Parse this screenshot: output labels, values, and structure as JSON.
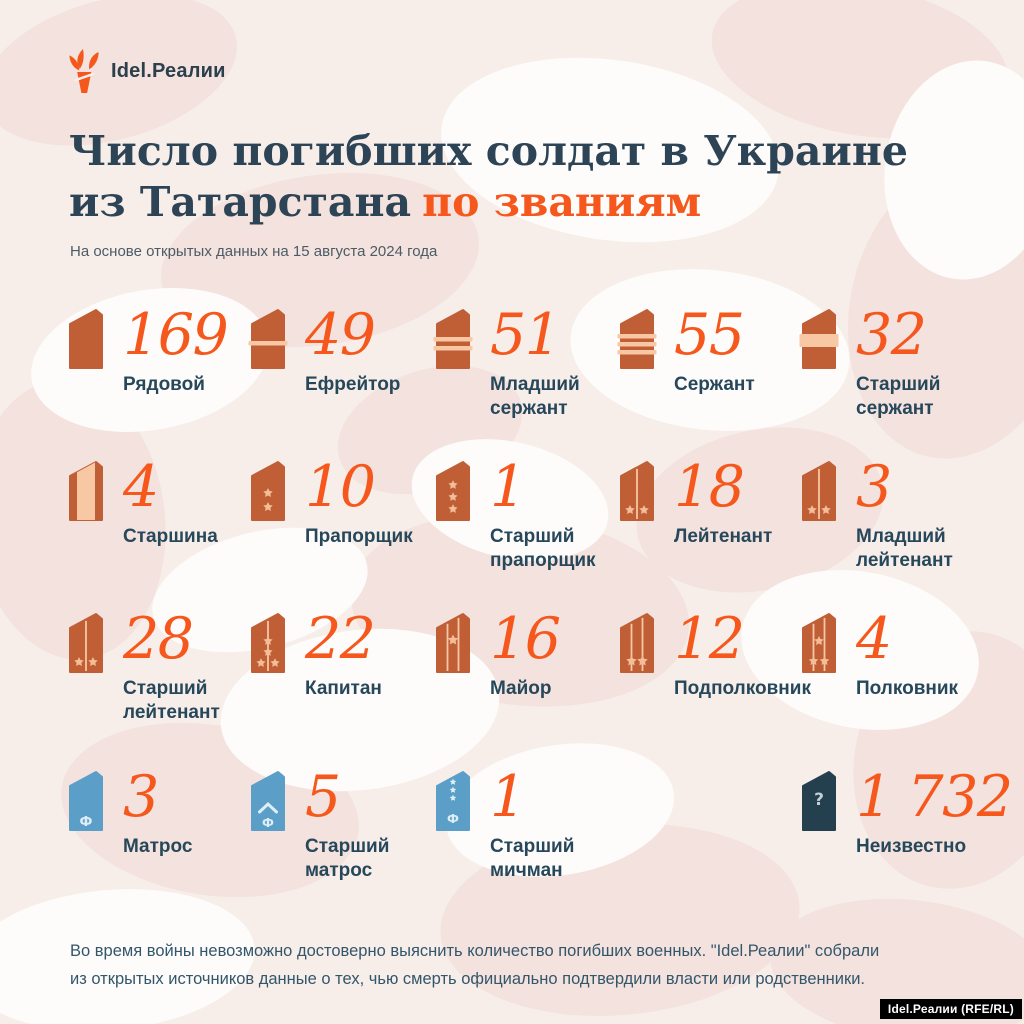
{
  "brand": {
    "name": "Idel.Реалии"
  },
  "title": {
    "line1": "Число погибших солдат в Украине",
    "line2_prefix": "из Татарстана",
    "line2_accent": "по званиям"
  },
  "subtitle": "На основе открытых данных на 15 августа 2024 года",
  "ranks": [
    {
      "label": "Рядовой",
      "value": "169",
      "variant": "plain",
      "row": 0,
      "col": 0
    },
    {
      "label": "Ефрейтор",
      "value": "49",
      "variant": "stripes1",
      "row": 0,
      "col": 1
    },
    {
      "label": "Младший сержант",
      "value": "51",
      "variant": "stripes2",
      "row": 0,
      "col": 2
    },
    {
      "label": "Сержант",
      "value": "55",
      "variant": "stripes3",
      "row": 0,
      "col": 3
    },
    {
      "label": "Старший сержант",
      "value": "32",
      "variant": "stripeWide",
      "row": 0,
      "col": 4
    },
    {
      "label": "Старшина",
      "value": "4",
      "variant": "panel",
      "row": 1,
      "col": 0
    },
    {
      "label": "Прапорщик",
      "value": "10",
      "variant": "stars2col",
      "row": 1,
      "col": 1
    },
    {
      "label": "Старший прапорщик",
      "value": "1",
      "variant": "stars3col",
      "row": 1,
      "col": 2
    },
    {
      "label": "Лейтенант",
      "value": "18",
      "variant": "line1stars2",
      "row": 1,
      "col": 3
    },
    {
      "label": "Младший лейтенант",
      "value": "3",
      "variant": "line1stars2",
      "row": 1,
      "col": 4
    },
    {
      "label": "Старший лейтенант",
      "value": "28",
      "variant": "line1stars2",
      "row": 2,
      "col": 0
    },
    {
      "label": "Капитан",
      "value": "22",
      "variant": "line1stars4",
      "row": 2,
      "col": 1
    },
    {
      "label": "Майор",
      "value": "16",
      "variant": "line2star1",
      "row": 2,
      "col": 2
    },
    {
      "label": "Подполковник",
      "value": "12",
      "variant": "line2stars2",
      "row": 2,
      "col": 3
    },
    {
      "label": "Полковник",
      "value": "4",
      "variant": "line2stars3",
      "row": 2,
      "col": 4
    },
    {
      "label": "Матрос",
      "value": "3",
      "variant": "navyF",
      "row": 3,
      "col": 0
    },
    {
      "label": "Старший матрос",
      "value": "5",
      "variant": "navyChevronF",
      "row": 3,
      "col": 1
    },
    {
      "label": "Старший мичман",
      "value": "1",
      "variant": "navyStarsF",
      "row": 3,
      "col": 2
    },
    {
      "label": "Неизвестно",
      "value": "1 732",
      "variant": "darkQuestion",
      "row": 3,
      "col": 4
    }
  ],
  "footer": {
    "line1": "Во время войны невозможно достоверно выяснить количество погибших военных. \"Idel.Реалии\" собрали",
    "line2": "из открытых источников данные о тех, чью смерть официально подтвердили власти или родственники."
  },
  "watermark": "Idel.Реалии (RFE/RL)",
  "colors": {
    "accent": "#f5571c",
    "navy_text": "#27475a",
    "title_navy": "#2d4456",
    "board_orange": "#c05f36",
    "board_peach": "#f8c7a4",
    "star_peach": "#f3bd98",
    "board_blue": "#5b9fc8",
    "board_blue_mark": "#ddeef7",
    "board_dark": "#24404f",
    "board_dark_mark": "#c3cfd6",
    "background": "#f7eeea",
    "blob_pink": "#f3e2dd",
    "blob_white": "#fdfcfa"
  },
  "chart_data": {
    "type": "table",
    "title": "Число погибших солдат в Украине из Татарстана по званиям",
    "subtitle": "На основе открытых данных на 15 августа 2024 года",
    "categories": [
      "Рядовой",
      "Ефрейтор",
      "Младший сержант",
      "Сержант",
      "Старший сержант",
      "Старшина",
      "Прапорщик",
      "Старший прапорщик",
      "Лейтенант",
      "Младший лейтенант",
      "Старший лейтенант",
      "Капитан",
      "Майор",
      "Подполковник",
      "Полковник",
      "Матрос",
      "Старший матрос",
      "Старший мичман",
      "Неизвестно"
    ],
    "values": [
      169,
      49,
      51,
      55,
      32,
      4,
      10,
      1,
      18,
      3,
      28,
      22,
      16,
      12,
      4,
      3,
      5,
      1,
      1732
    ],
    "note": "Во время войны невозможно достоверно выяснить количество погибших военных. \"Idel.Реалии\" собрали из открытых источников данные о тех, чью смерть официально подтвердили власти или родственники.",
    "source": "Idel.Реалии (RFE/RL)"
  }
}
